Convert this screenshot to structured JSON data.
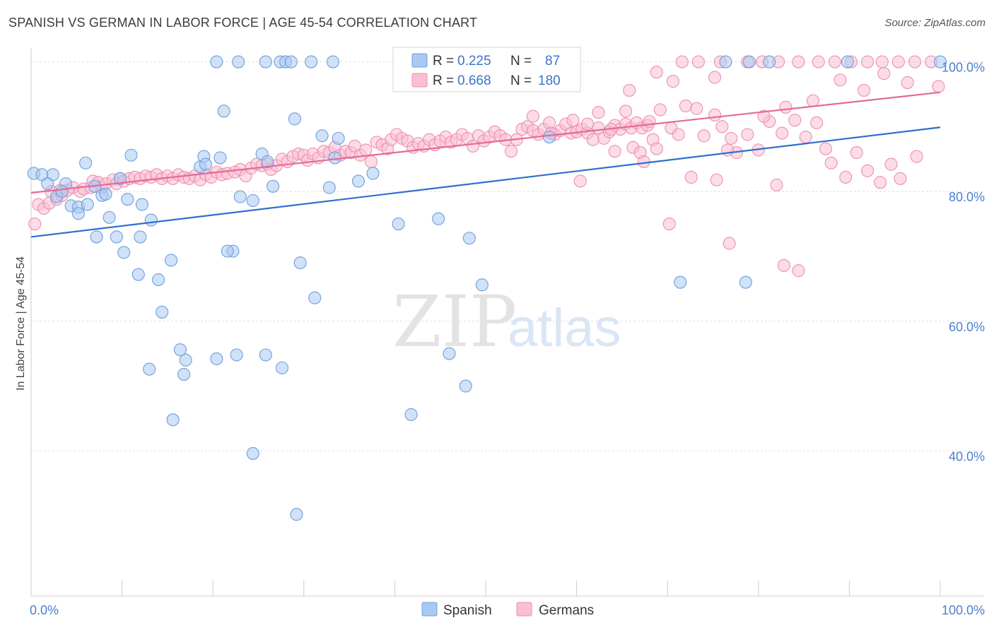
{
  "title": "SPANISH VS GERMAN IN LABOR FORCE | AGE 45-54 CORRELATION CHART",
  "source": "Source: ZipAtlas.com",
  "watermark": {
    "zip": "ZIP",
    "atlas": "atlas"
  },
  "colors": {
    "spanish_fill": "#a9c9f2",
    "spanish_stroke": "#6e9fdc",
    "spanish_line": "#2f6fcf",
    "germans_fill": "#f9bfd2",
    "germans_stroke": "#ec8fb0",
    "germans_line": "#e46a97",
    "axis_text": "#4a7fd0",
    "grid": "#dddddd"
  },
  "legend_box": {
    "rows": [
      {
        "r_label": "R =",
        "r_value": "0.225",
        "n_label": "N =",
        "n_value": "87"
      },
      {
        "r_label": "R =",
        "r_value": "0.668",
        "n_label": "N =",
        "n_value": "180"
      }
    ]
  },
  "chart_data": {
    "type": "scatter",
    "title": "SPANISH VS GERMAN IN LABOR FORCE | AGE 45-54 CORRELATION CHART",
    "xlabel": "",
    "ylabel": "In Labor Force | Age 45-54",
    "xlim": [
      0,
      100
    ],
    "ylim": [
      20,
      103
    ],
    "x_tick_labels": [
      "0.0%",
      "100.0%"
    ],
    "y_ticks": [
      40,
      60,
      80,
      100
    ],
    "y_tick_labels": [
      "40.0%",
      "60.0%",
      "80.0%",
      "100.0%"
    ],
    "grid": true,
    "legend": "bottom-center",
    "series": [
      {
        "name": "Spanish",
        "r": 0.225,
        "n": 87,
        "trend": [
          [
            0,
            73.0
          ],
          [
            100,
            89.9
          ]
        ],
        "points": [
          [
            0.3,
            82.8
          ],
          [
            1.2,
            82.6
          ],
          [
            2.4,
            82.6
          ],
          [
            1.8,
            81.2
          ],
          [
            6.0,
            84.4
          ],
          [
            3.8,
            81.2
          ],
          [
            2.8,
            79.2
          ],
          [
            3.4,
            80.0
          ],
          [
            4.4,
            77.8
          ],
          [
            5.2,
            77.6
          ],
          [
            5.2,
            76.6
          ],
          [
            6.2,
            78.0
          ],
          [
            7.0,
            80.8
          ],
          [
            7.8,
            79.4
          ],
          [
            8.2,
            79.6
          ],
          [
            9.8,
            82.0
          ],
          [
            8.6,
            76.0
          ],
          [
            10.6,
            78.8
          ],
          [
            11.0,
            85.6
          ],
          [
            12.2,
            78.0
          ],
          [
            13.2,
            75.6
          ],
          [
            7.2,
            73.0
          ],
          [
            9.4,
            73.0
          ],
          [
            10.2,
            70.6
          ],
          [
            12.0,
            73.0
          ],
          [
            15.4,
            69.4
          ],
          [
            11.8,
            67.2
          ],
          [
            14.0,
            66.4
          ],
          [
            14.4,
            61.4
          ],
          [
            13.0,
            52.6
          ],
          [
            16.4,
            55.6
          ],
          [
            17.0,
            54.0
          ],
          [
            16.8,
            51.8
          ],
          [
            15.6,
            44.8
          ],
          [
            21.2,
            92.4
          ],
          [
            18.6,
            83.8
          ],
          [
            19.0,
            85.4
          ],
          [
            19.2,
            84.2
          ],
          [
            20.8,
            85.2
          ],
          [
            23.0,
            79.2
          ],
          [
            24.4,
            78.6
          ],
          [
            22.2,
            70.8
          ],
          [
            21.6,
            70.8
          ],
          [
            20.4,
            54.2
          ],
          [
            22.6,
            54.8
          ],
          [
            24.4,
            39.6
          ],
          [
            25.4,
            85.8
          ],
          [
            26.0,
            84.6
          ],
          [
            26.6,
            80.8
          ],
          [
            29.0,
            91.2
          ],
          [
            29.6,
            69.0
          ],
          [
            31.2,
            63.6
          ],
          [
            25.8,
            54.8
          ],
          [
            27.6,
            52.8
          ],
          [
            29.2,
            30.2
          ],
          [
            32.0,
            88.6
          ],
          [
            32.8,
            80.6
          ],
          [
            33.8,
            88.2
          ],
          [
            33.4,
            85.2
          ],
          [
            36.0,
            81.6
          ],
          [
            37.6,
            82.8
          ],
          [
            40.4,
            75.0
          ],
          [
            41.8,
            45.6
          ],
          [
            44.8,
            75.8
          ],
          [
            48.2,
            72.8
          ],
          [
            46.0,
            55.0
          ],
          [
            47.8,
            50.0
          ],
          [
            49.6,
            65.6
          ],
          [
            57.0,
            88.4
          ],
          [
            20.4,
            100
          ],
          [
            22.8,
            100
          ],
          [
            25.8,
            100
          ],
          [
            27.4,
            100
          ],
          [
            28.0,
            100
          ],
          [
            28.6,
            100
          ],
          [
            30.8,
            100
          ],
          [
            33.2,
            100
          ],
          [
            47.2,
            100
          ],
          [
            48.0,
            100
          ],
          [
            51.2,
            100
          ],
          [
            56.4,
            100
          ],
          [
            76.4,
            100
          ],
          [
            79.0,
            100
          ],
          [
            81.2,
            100
          ],
          [
            89.8,
            100
          ],
          [
            100.0,
            100
          ],
          [
            71.4,
            66.0
          ],
          [
            78.6,
            66.0
          ]
        ]
      },
      {
        "name": "Germans",
        "r": 0.668,
        "n": 180,
        "trend": [
          [
            0,
            79.8
          ],
          [
            100,
            95.3
          ]
        ],
        "points": [
          [
            0.4,
            75.0
          ],
          [
            0.8,
            78.0
          ],
          [
            1.4,
            77.4
          ],
          [
            2.0,
            78.2
          ],
          [
            2.2,
            80.0
          ],
          [
            2.8,
            78.8
          ],
          [
            3.4,
            79.4
          ],
          [
            3.2,
            80.2
          ],
          [
            4.0,
            80.2
          ],
          [
            4.6,
            80.6
          ],
          [
            5.4,
            80.0
          ],
          [
            5.8,
            80.4
          ],
          [
            6.6,
            80.6
          ],
          [
            6.8,
            81.6
          ],
          [
            7.4,
            81.4
          ],
          [
            7.8,
            80.6
          ],
          [
            8.2,
            81.2
          ],
          [
            9.0,
            81.8
          ],
          [
            9.4,
            81.2
          ],
          [
            9.8,
            82.0
          ],
          [
            10.2,
            81.6
          ],
          [
            10.8,
            82.0
          ],
          [
            11.4,
            82.2
          ],
          [
            12.0,
            82.0
          ],
          [
            12.6,
            82.4
          ],
          [
            13.2,
            82.2
          ],
          [
            13.8,
            82.6
          ],
          [
            14.4,
            82.0
          ],
          [
            15.0,
            82.4
          ],
          [
            15.6,
            82.0
          ],
          [
            16.2,
            82.6
          ],
          [
            16.8,
            82.2
          ],
          [
            17.4,
            82.0
          ],
          [
            18.0,
            82.4
          ],
          [
            18.6,
            81.8
          ],
          [
            19.2,
            82.6
          ],
          [
            19.8,
            82.2
          ],
          [
            20.4,
            83.0
          ],
          [
            21.0,
            82.6
          ],
          [
            21.6,
            82.8
          ],
          [
            22.4,
            83.0
          ],
          [
            23.0,
            83.4
          ],
          [
            23.6,
            82.4
          ],
          [
            24.2,
            83.6
          ],
          [
            24.8,
            84.2
          ],
          [
            25.4,
            84.0
          ],
          [
            26.0,
            84.2
          ],
          [
            26.4,
            83.4
          ],
          [
            27.0,
            84.0
          ],
          [
            27.6,
            85.0
          ],
          [
            28.2,
            84.6
          ],
          [
            28.8,
            85.4
          ],
          [
            29.4,
            85.8
          ],
          [
            30.0,
            85.6
          ],
          [
            30.4,
            84.8
          ],
          [
            31.0,
            85.8
          ],
          [
            31.6,
            85.2
          ],
          [
            32.2,
            86.2
          ],
          [
            32.8,
            86.0
          ],
          [
            33.4,
            86.8
          ],
          [
            34.0,
            85.6
          ],
          [
            34.6,
            86.2
          ],
          [
            35.2,
            86.0
          ],
          [
            35.6,
            87.0
          ],
          [
            36.2,
            85.6
          ],
          [
            36.8,
            86.4
          ],
          [
            37.4,
            84.6
          ],
          [
            38.0,
            87.6
          ],
          [
            38.6,
            87.2
          ],
          [
            39.2,
            86.6
          ],
          [
            39.6,
            88.0
          ],
          [
            40.2,
            88.8
          ],
          [
            40.8,
            88.2
          ],
          [
            41.4,
            87.8
          ],
          [
            42.0,
            86.8
          ],
          [
            42.6,
            87.4
          ],
          [
            43.2,
            87.0
          ],
          [
            43.8,
            88.0
          ],
          [
            44.4,
            87.2
          ],
          [
            45.0,
            87.8
          ],
          [
            45.6,
            88.4
          ],
          [
            46.2,
            87.6
          ],
          [
            46.8,
            88.0
          ],
          [
            47.4,
            88.8
          ],
          [
            48.0,
            88.2
          ],
          [
            48.6,
            87.0
          ],
          [
            49.2,
            88.6
          ],
          [
            49.8,
            87.8
          ],
          [
            50.4,
            88.4
          ],
          [
            51.0,
            89.2
          ],
          [
            51.6,
            88.6
          ],
          [
            52.2,
            88.0
          ],
          [
            52.8,
            86.2
          ],
          [
            53.4,
            88.0
          ],
          [
            54.0,
            89.6
          ],
          [
            54.6,
            90.0
          ],
          [
            55.2,
            89.4
          ],
          [
            55.8,
            88.8
          ],
          [
            56.4,
            89.6
          ],
          [
            57.0,
            90.6
          ],
          [
            57.6,
            88.8
          ],
          [
            58.2,
            89.4
          ],
          [
            58.8,
            90.4
          ],
          [
            59.4,
            89.0
          ],
          [
            60.0,
            89.2
          ],
          [
            60.6,
            89.6
          ],
          [
            61.2,
            89.0
          ],
          [
            61.8,
            88.0
          ],
          [
            62.4,
            89.8
          ],
          [
            63.0,
            88.2
          ],
          [
            63.6,
            89.2
          ],
          [
            64.2,
            90.2
          ],
          [
            64.8,
            89.6
          ],
          [
            65.4,
            90.4
          ],
          [
            66.0,
            89.8
          ],
          [
            66.6,
            90.6
          ],
          [
            67.2,
            89.8
          ],
          [
            67.8,
            90.2
          ],
          [
            68.4,
            88.0
          ],
          [
            68.8,
            86.6
          ],
          [
            55.2,
            91.6
          ],
          [
            57.2,
            89.0
          ],
          [
            59.6,
            91.0
          ],
          [
            61.2,
            90.4
          ],
          [
            62.4,
            92.2
          ],
          [
            63.8,
            89.6
          ],
          [
            65.4,
            92.4
          ],
          [
            66.2,
            86.8
          ],
          [
            67.0,
            86.0
          ],
          [
            68.0,
            90.8
          ],
          [
            69.2,
            92.6
          ],
          [
            70.4,
            89.8
          ],
          [
            71.2,
            88.8
          ],
          [
            72.0,
            93.2
          ],
          [
            73.2,
            92.8
          ],
          [
            74.0,
            88.6
          ],
          [
            75.2,
            91.8
          ],
          [
            76.0,
            90.0
          ],
          [
            77.0,
            88.2
          ],
          [
            77.6,
            86.0
          ],
          [
            78.8,
            88.8
          ],
          [
            80.0,
            86.4
          ],
          [
            81.2,
            90.8
          ],
          [
            82.6,
            89.0
          ],
          [
            84.0,
            91.0
          ],
          [
            85.2,
            88.4
          ],
          [
            86.4,
            90.6
          ],
          [
            87.4,
            86.6
          ],
          [
            88.0,
            84.4
          ],
          [
            89.6,
            82.2
          ],
          [
            90.8,
            86.0
          ],
          [
            92.0,
            83.2
          ],
          [
            93.4,
            81.4
          ],
          [
            94.6,
            84.2
          ],
          [
            95.6,
            82.0
          ],
          [
            97.4,
            85.4
          ],
          [
            60.4,
            81.6
          ],
          [
            64.2,
            86.2
          ],
          [
            67.4,
            84.6
          ],
          [
            72.6,
            82.2
          ],
          [
            75.4,
            81.8
          ],
          [
            76.6,
            86.4
          ],
          [
            82.0,
            81.0
          ],
          [
            70.2,
            75.0
          ],
          [
            76.8,
            72.0
          ],
          [
            82.8,
            68.6
          ],
          [
            84.4,
            67.8
          ],
          [
            83.0,
            93.0
          ],
          [
            80.6,
            91.6
          ],
          [
            86.0,
            94.0
          ],
          [
            89.0,
            97.2
          ],
          [
            91.6,
            95.6
          ],
          [
            93.8,
            98.2
          ],
          [
            96.4,
            96.8
          ],
          [
            99.8,
            96.2
          ],
          [
            65.8,
            95.6
          ],
          [
            70.6,
            97.0
          ],
          [
            75.2,
            97.6
          ],
          [
            68.8,
            98.4
          ],
          [
            71.6,
            100
          ],
          [
            73.4,
            100
          ],
          [
            75.8,
            100
          ],
          [
            78.8,
            100
          ],
          [
            80.4,
            100
          ],
          [
            82.2,
            100
          ],
          [
            84.4,
            100
          ],
          [
            86.6,
            100
          ],
          [
            88.4,
            100
          ],
          [
            90.2,
            100
          ],
          [
            92.0,
            100
          ],
          [
            93.6,
            100
          ],
          [
            95.4,
            100
          ],
          [
            97.2,
            100
          ],
          [
            99.0,
            100
          ]
        ]
      }
    ]
  },
  "legend_bottom": [
    "Spanish",
    "Germans"
  ]
}
